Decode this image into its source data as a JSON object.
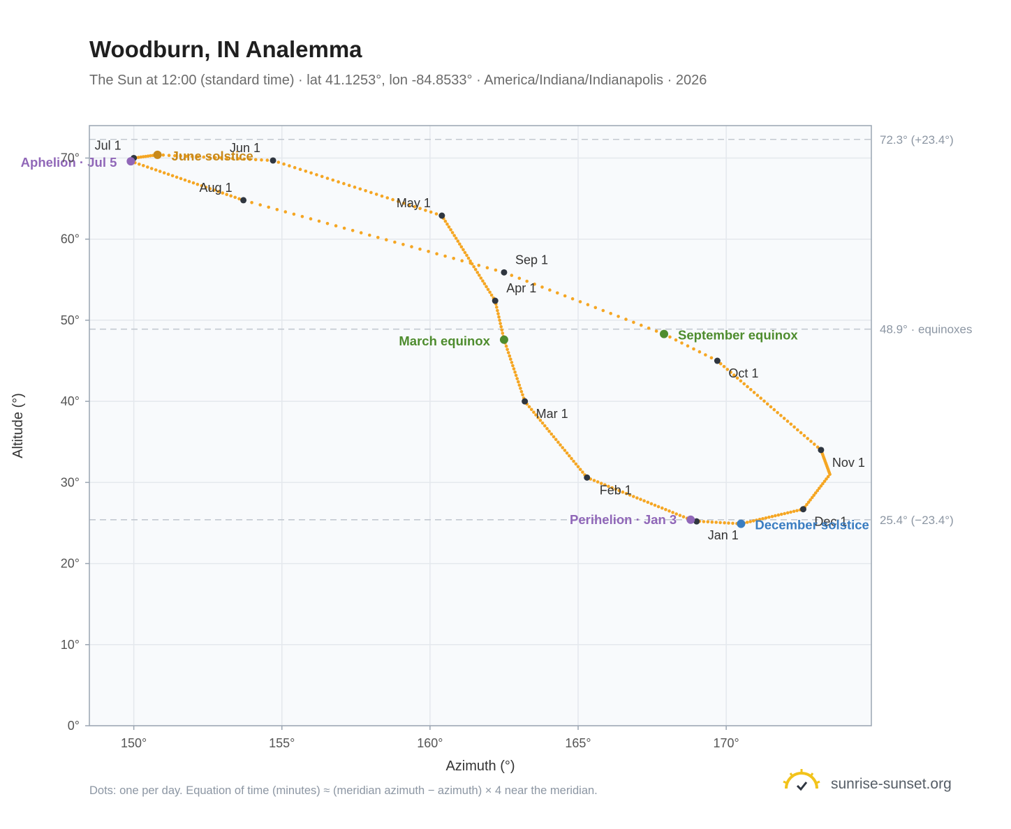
{
  "header": {
    "title": "Woodburn, IN Analemma",
    "subtitle": "The Sun at 12:00 (standard time) · lat 41.1253°, lon -84.8533° · America/Indiana/Indianapolis · 2026"
  },
  "footer": {
    "note": "Dots: one per day. Equation of time (minutes) ≈ (meridian azimuth − azimuth) × 4 near the meridian.",
    "brand": "sunrise-sunset.org",
    "brand_icon": "sun-check-icon"
  },
  "colors": {
    "curve": "#f5a623",
    "month_marker": "#2f3640",
    "equinox": "#4e8c2e",
    "june_solstice": "#c8891a",
    "december_solstice": "#3a7dc1",
    "aphelion_perihelion": "#9067b8",
    "plot_bg": "#f8fafc",
    "grid": "#e4e8ed",
    "reference_line": "#c3c9d1",
    "frame": "#9aa5b2"
  },
  "chart_data": {
    "type": "scatter",
    "xlabel": "Azimuth (°)",
    "ylabel": "Altitude (°)",
    "xlim": [
      148.5,
      174.9
    ],
    "ylim": [
      0,
      74
    ],
    "x_ticks": [
      150,
      155,
      160,
      165,
      170
    ],
    "x_tick_labels": [
      "150°",
      "155°",
      "160°",
      "165°",
      "170°"
    ],
    "y_ticks": [
      0,
      10,
      20,
      30,
      40,
      50,
      60,
      70
    ],
    "y_tick_labels": [
      "0°",
      "10°",
      "20°",
      "30°",
      "40°",
      "50°",
      "60°",
      "70°"
    ],
    "grid": true,
    "reference_lines": [
      {
        "altitude": 72.3,
        "label": "72.3° (+23.4°)"
      },
      {
        "altitude": 48.9,
        "label": "48.9° · equinoxes"
      },
      {
        "altitude": 25.4,
        "label": "25.4° (−23.4°)"
      }
    ],
    "series": [
      {
        "points": [
          {
            "doy": 1,
            "az": 169.0,
            "alt": 25.2
          },
          {
            "doy": 3,
            "az": 168.8,
            "alt": 25.4
          },
          {
            "doy": 32,
            "az": 165.3,
            "alt": 30.6
          },
          {
            "doy": 60,
            "az": 163.2,
            "alt": 40.0
          },
          {
            "doy": 79,
            "az": 162.5,
            "alt": 47.6
          },
          {
            "doy": 91,
            "az": 162.2,
            "alt": 52.4
          },
          {
            "doy": 121,
            "az": 160.4,
            "alt": 62.9
          },
          {
            "doy": 152,
            "az": 154.7,
            "alt": 69.7
          },
          {
            "doy": 172,
            "az": 150.8,
            "alt": 70.4
          },
          {
            "doy": 182,
            "az": 150.0,
            "alt": 70.0
          },
          {
            "doy": 186,
            "az": 149.9,
            "alt": 69.6
          },
          {
            "doy": 213,
            "az": 153.7,
            "alt": 64.8
          },
          {
            "doy": 244,
            "az": 162.5,
            "alt": 55.9
          },
          {
            "doy": 265,
            "az": 167.9,
            "alt": 48.3
          },
          {
            "doy": 274,
            "az": 169.7,
            "alt": 45.0
          },
          {
            "doy": 305,
            "az": 173.2,
            "alt": 34.0
          },
          {
            "doy": 320,
            "az": 173.5,
            "alt": 31.0
          },
          {
            "doy": 335,
            "az": 172.6,
            "alt": 26.7
          },
          {
            "doy": 355,
            "az": 170.5,
            "alt": 24.9
          },
          {
            "doy": 365,
            "az": 169.1,
            "alt": 25.2
          }
        ]
      }
    ],
    "month_markers": [
      {
        "label": "Jan 1",
        "az": 169.0,
        "alt": 25.2
      },
      {
        "label": "Feb 1",
        "az": 165.3,
        "alt": 30.6
      },
      {
        "label": "Mar 1",
        "az": 163.2,
        "alt": 40.0
      },
      {
        "label": "Apr 1",
        "az": 162.2,
        "alt": 52.4
      },
      {
        "label": "May 1",
        "az": 160.4,
        "alt": 62.9
      },
      {
        "label": "Jun 1",
        "az": 154.7,
        "alt": 69.7
      },
      {
        "label": "Jul 1",
        "az": 150.0,
        "alt": 70.0
      },
      {
        "label": "Aug 1",
        "az": 153.7,
        "alt": 64.8
      },
      {
        "label": "Sep 1",
        "az": 162.5,
        "alt": 55.9
      },
      {
        "label": "Oct 1",
        "az": 169.7,
        "alt": 45.0
      },
      {
        "label": "Nov 1",
        "az": 173.2,
        "alt": 34.0
      },
      {
        "label": "Dec 1",
        "az": 172.6,
        "alt": 26.7
      }
    ],
    "special_points": [
      {
        "label": "March equinox",
        "kind": "equinox",
        "az": 162.5,
        "alt": 47.6
      },
      {
        "label": "September equinox",
        "kind": "equinox",
        "az": 167.9,
        "alt": 48.3
      },
      {
        "label": "June solstice",
        "kind": "june_solstice",
        "az": 150.8,
        "alt": 70.4
      },
      {
        "label": "December solstice",
        "kind": "december_solstice",
        "az": 170.5,
        "alt": 24.9
      },
      {
        "label": "Aphelion · Jul 5",
        "kind": "aphelion_perihelion",
        "az": 149.9,
        "alt": 69.6
      },
      {
        "label": "Perihelion · Jan 3",
        "kind": "aphelion_perihelion",
        "az": 168.8,
        "alt": 25.4
      }
    ]
  }
}
